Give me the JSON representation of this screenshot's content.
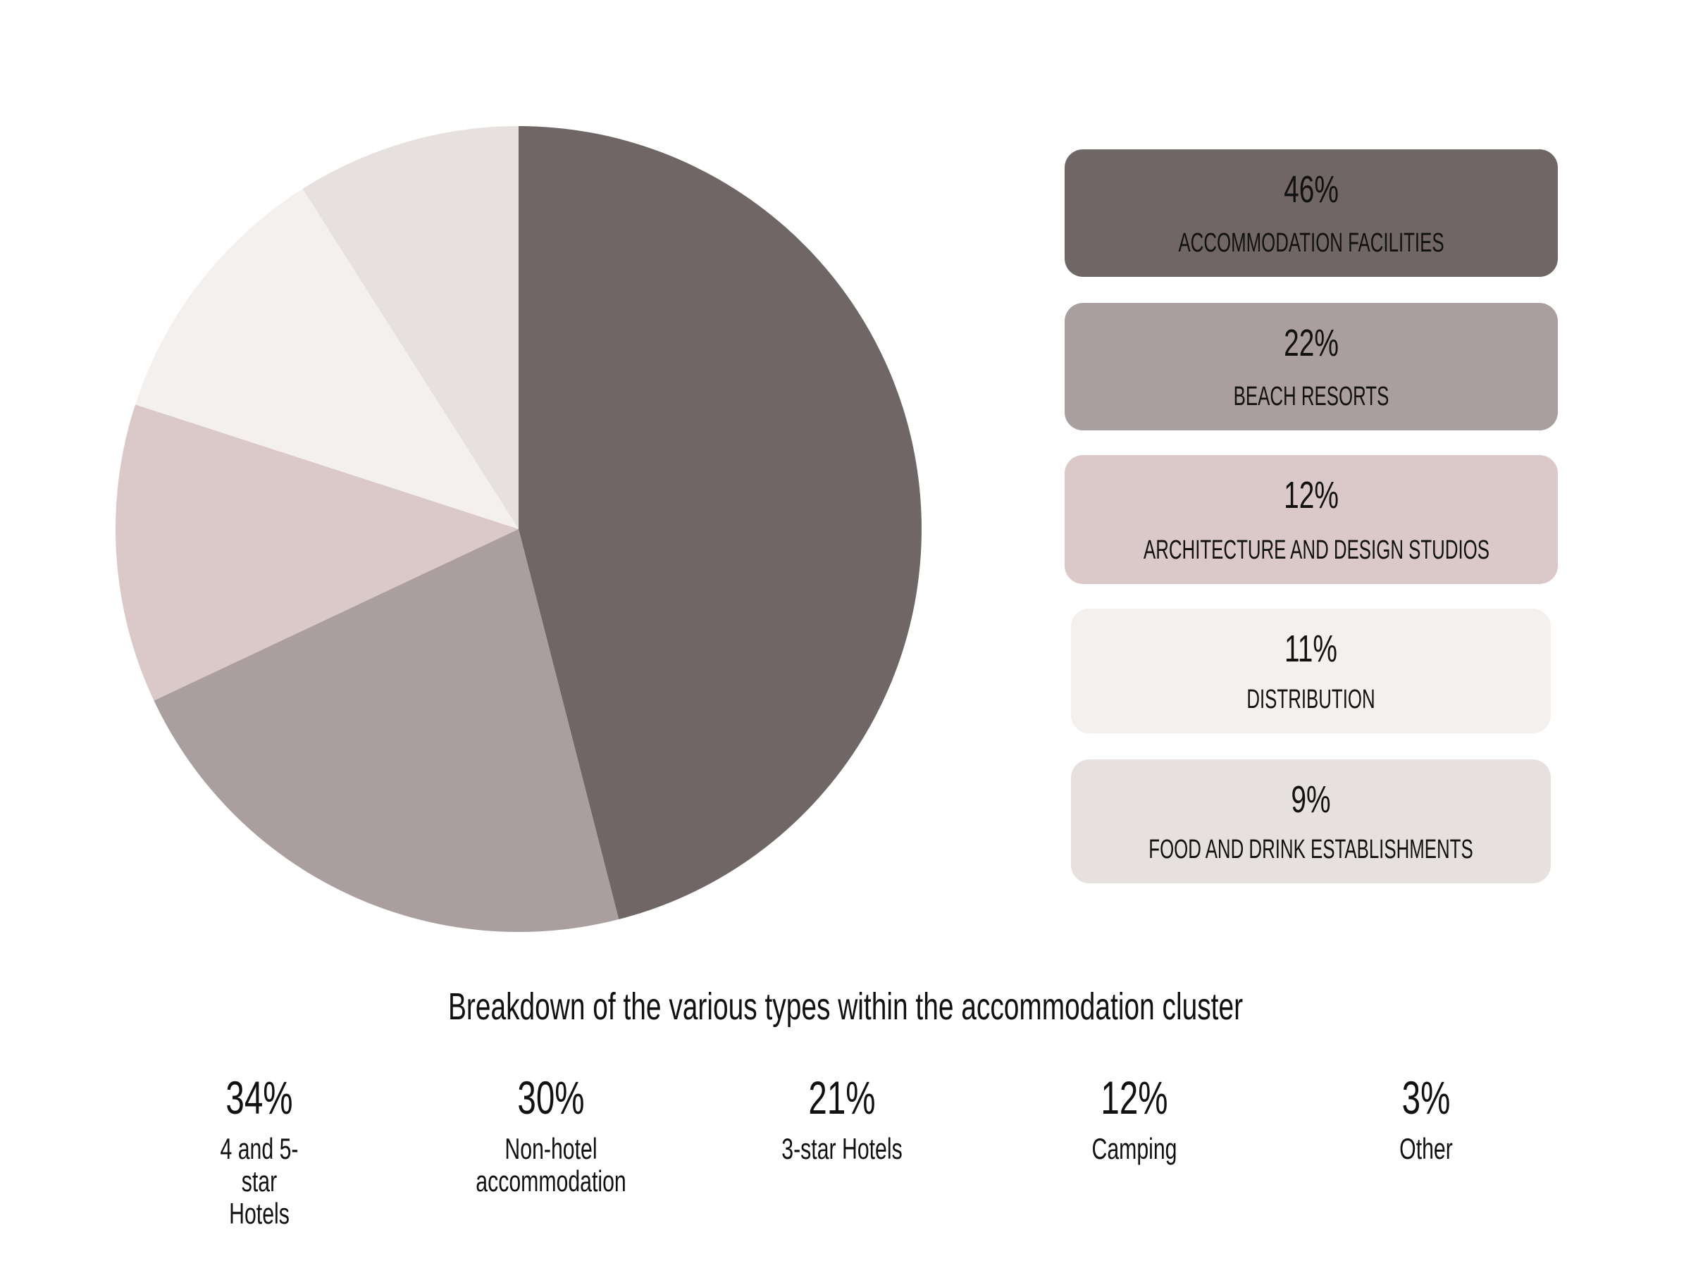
{
  "chart_data": {
    "type": "pie",
    "title": "Breakdown of the various types within the accommodation cluster",
    "slices": [
      {
        "label": "ACCOMMODATION FACILITIES",
        "value": 46,
        "display": "46%",
        "color": "#706666"
      },
      {
        "label": "BEACH RESORTS",
        "value": 22,
        "display": "22%",
        "color": "#ab9e9e"
      },
      {
        "label": "ARCHITECTURE AND DESIGN STUDIOS",
        "value": 12,
        "display": "12%",
        "color": "#dbc9c9"
      },
      {
        "label": "DISTRIBUTION",
        "value": 11,
        "display": "11%",
        "color": "#f3f0ee"
      },
      {
        "label": "FOOD AND DRINK ESTABLISHMENTS",
        "value": 9,
        "display": "9%",
        "color": "#e6e1df"
      }
    ],
    "legend": "right",
    "breakdown": [
      {
        "label": "4 and 5-star Hotels",
        "value": 34,
        "display": "34%"
      },
      {
        "label": "Non-hotel accommodation",
        "value": 30,
        "display": "30%"
      },
      {
        "label": "3-star Hotels",
        "value": 21,
        "display": "21%"
      },
      {
        "label": "Camping",
        "value": 12,
        "display": "12%"
      },
      {
        "label": "Other",
        "value": 3,
        "display": "3%"
      }
    ]
  }
}
